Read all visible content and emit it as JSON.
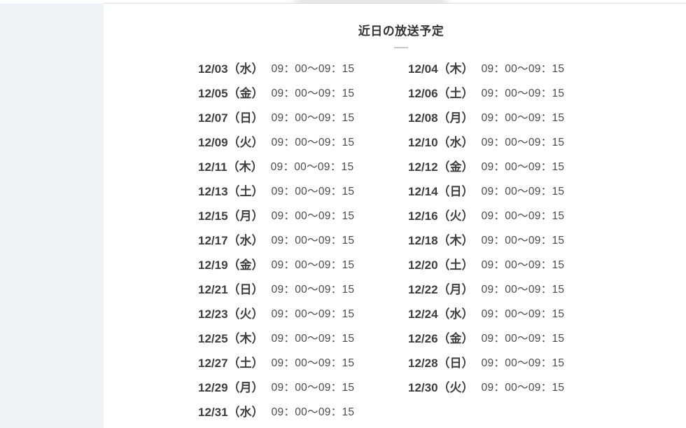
{
  "page": {
    "title": "近日の放送予定"
  },
  "colors": {
    "sidebar_bg": "#eef3f8",
    "content_bg": "#ffffff",
    "top_border": "#e2e2e2",
    "title_text": "#333333",
    "title_divider": "#c9c9c9",
    "date_text": "#3d3d3d",
    "time_text": "#4a4a4a"
  },
  "schedule": {
    "entries": [
      {
        "date": "12/03（水）",
        "time": "09：00〜09：15"
      },
      {
        "date": "12/04（木）",
        "time": "09：00〜09：15"
      },
      {
        "date": "12/05（金）",
        "time": "09：00〜09：15"
      },
      {
        "date": "12/06（土）",
        "time": "09：00〜09：15"
      },
      {
        "date": "12/07（日）",
        "time": "09：00〜09：15"
      },
      {
        "date": "12/08（月）",
        "time": "09：00〜09：15"
      },
      {
        "date": "12/09（火）",
        "time": "09：00〜09：15"
      },
      {
        "date": "12/10（水）",
        "time": "09：00〜09：15"
      },
      {
        "date": "12/11（木）",
        "time": "09：00〜09：15"
      },
      {
        "date": "12/12（金）",
        "time": "09：00〜09：15"
      },
      {
        "date": "12/13（土）",
        "time": "09：00〜09：15"
      },
      {
        "date": "12/14（日）",
        "time": "09：00〜09：15"
      },
      {
        "date": "12/15（月）",
        "time": "09：00〜09：15"
      },
      {
        "date": "12/16（火）",
        "time": "09：00〜09：15"
      },
      {
        "date": "12/17（水）",
        "time": "09：00〜09：15"
      },
      {
        "date": "12/18（木）",
        "time": "09：00〜09：15"
      },
      {
        "date": "12/19（金）",
        "time": "09：00〜09：15"
      },
      {
        "date": "12/20（土）",
        "time": "09：00〜09：15"
      },
      {
        "date": "12/21（日）",
        "time": "09：00〜09：15"
      },
      {
        "date": "12/22（月）",
        "time": "09：00〜09：15"
      },
      {
        "date": "12/23（火）",
        "time": "09：00〜09：15"
      },
      {
        "date": "12/24（水）",
        "time": "09：00〜09：15"
      },
      {
        "date": "12/25（木）",
        "time": "09：00〜09：15"
      },
      {
        "date": "12/26（金）",
        "time": "09：00〜09：15"
      },
      {
        "date": "12/27（土）",
        "time": "09：00〜09：15"
      },
      {
        "date": "12/28（日）",
        "time": "09：00〜09：15"
      },
      {
        "date": "12/29（月）",
        "time": "09：00〜09：15"
      },
      {
        "date": "12/30（火）",
        "time": "09：00〜09：15"
      },
      {
        "date": "12/31（水）",
        "time": "09：00〜09：15"
      }
    ]
  }
}
